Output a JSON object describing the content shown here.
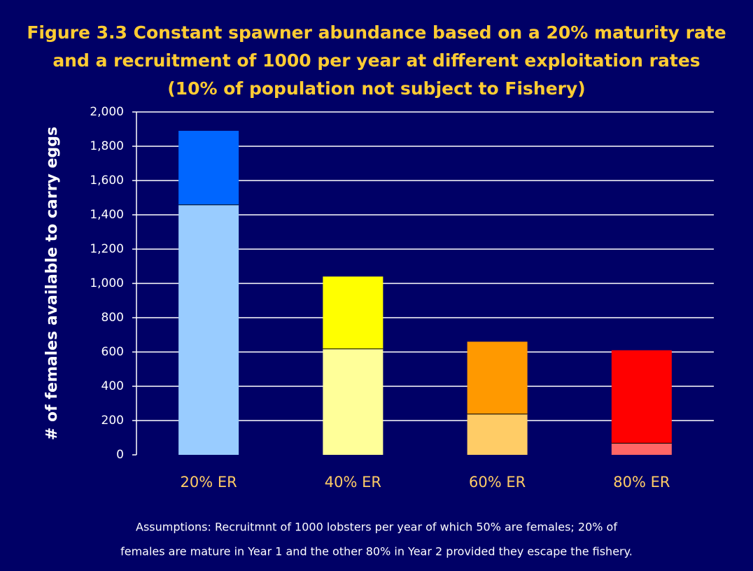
{
  "chart_data": {
    "type": "stacked_bar",
    "title": [
      "Figure 3.3 Constant spawner abundance based on a 20% maturity rate",
      "and a recruitment of 1000 per year at different exploitation rates",
      "(10% of population not subject to Fishery)"
    ],
    "y_label": "# of females available to carry eggs",
    "categories": [
      "20% ER",
      "40% ER",
      "60% ER",
      "80% ER"
    ],
    "series": [
      {
        "colors": [
          "#99ccff",
          "#ffff99",
          "#ffcc66",
          "#ff6666"
        ],
        "values": [
          1460,
          620,
          240,
          70
        ]
      },
      {
        "colors": [
          "#0066ff",
          "#ffff00",
          "#ff9900",
          "#ff0000"
        ],
        "values": [
          430,
          420,
          420,
          540
        ]
      }
    ],
    "ylim": [
      0,
      2000
    ],
    "yticks": [
      0,
      200,
      400,
      600,
      800,
      {
        "value": 1000,
        "label": "1,000"
      },
      {
        "value": 1200,
        "label": "1,200"
      },
      {
        "value": 1400,
        "label": "1,400"
      },
      {
        "value": 1600,
        "label": "1,600"
      },
      {
        "value": 1800,
        "label": "1,800"
      },
      {
        "value": 2000,
        "label": "2,000"
      }
    ],
    "grid": true,
    "notes": [
      "Assumptions: Recruitmnt of 1000 lobsters per year of which 50% are females; 20% of",
      "females are mature in Year 1 and the other 80% in Year 2 provided they escape the fishery."
    ]
  }
}
